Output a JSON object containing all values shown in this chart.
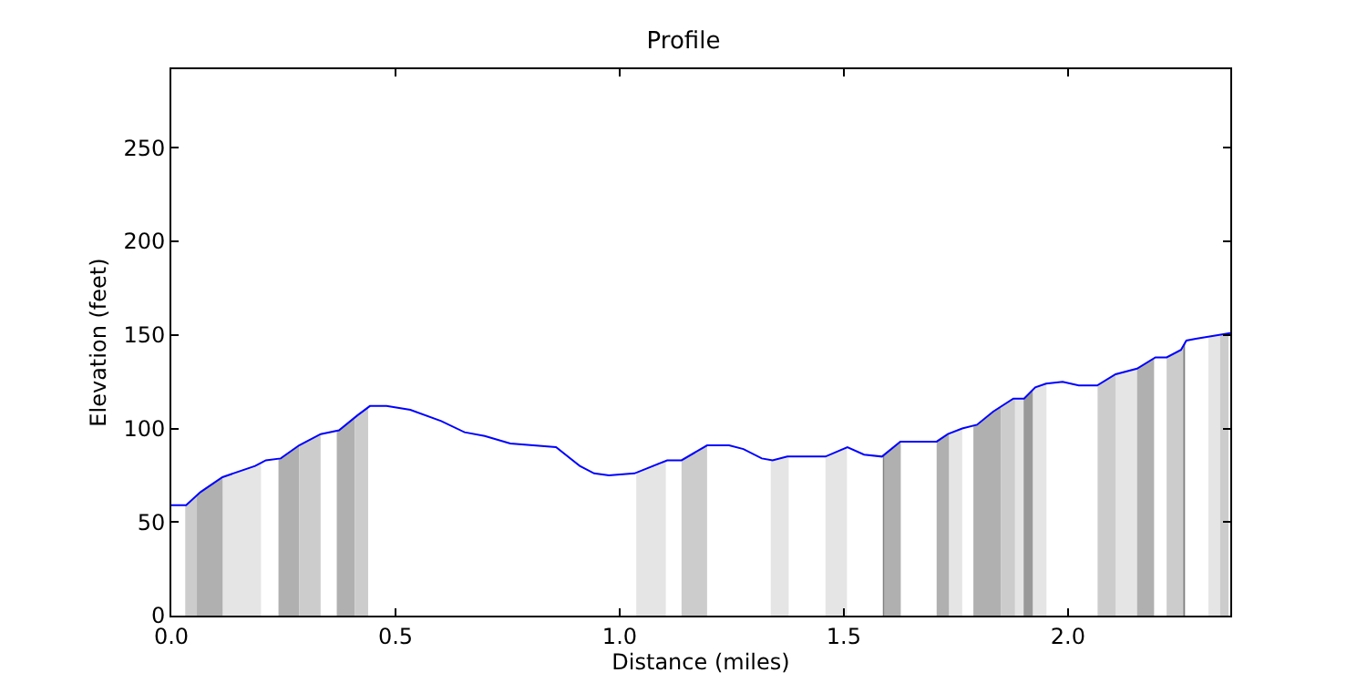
{
  "chart_data": {
    "type": "line",
    "title": "Profile",
    "xlabel": "Distance (miles)",
    "ylabel": "Elevation (feet)",
    "xlim": [
      0,
      2.362
    ],
    "ylim": [
      0,
      292
    ],
    "xticks": [
      {
        "value": 0,
        "label": "0.0"
      },
      {
        "value": 0.5,
        "label": "0.5"
      },
      {
        "value": 1,
        "label": "1.0"
      },
      {
        "value": 1.5,
        "label": "1.5"
      },
      {
        "value": 2,
        "label": "2.0"
      }
    ],
    "yticks": [
      0,
      50,
      100,
      150,
      200,
      250
    ],
    "grid": false,
    "line_style": "solid",
    "x": [
      0,
      0.033,
      0.065,
      0.114,
      0.187,
      0.211,
      0.244,
      0.285,
      0.333,
      0.374,
      0.415,
      0.443,
      0.48,
      0.533,
      0.602,
      0.654,
      0.699,
      0.756,
      0.858,
      0.911,
      0.943,
      0.976,
      1.033,
      1.106,
      1.138,
      1.195,
      1.244,
      1.276,
      1.317,
      1.341,
      1.374,
      1.459,
      1.508,
      1.545,
      1.585,
      1.626,
      1.707,
      1.732,
      1.764,
      1.797,
      1.833,
      1.878,
      1.902,
      1.927,
      1.951,
      1.988,
      2.024,
      2.065,
      2.106,
      2.154,
      2.195,
      2.22,
      2.252,
      2.264,
      2.285,
      2.362
    ],
    "series": [
      {
        "color": "#0000ff",
        "values": [
          59,
          59,
          66,
          74,
          80,
          83,
          84,
          91,
          97,
          99,
          107,
          112,
          112,
          110,
          104,
          98,
          96,
          92,
          90,
          80,
          76,
          75,
          76,
          83,
          83,
          91,
          91,
          89,
          84,
          83,
          85,
          85,
          90,
          86,
          85,
          93,
          93,
          97,
          100,
          102,
          109,
          116,
          116,
          122,
          124,
          125,
          123,
          123,
          129,
          132,
          138,
          138,
          142,
          147,
          148,
          151
        ]
      }
    ],
    "bands": [
      {
        "axis": "x",
        "from": 0.031,
        "to": 0.057,
        "color": "#cccccc"
      },
      {
        "axis": "x",
        "from": 0.057,
        "to": 0.115,
        "color": "#b0b0b0"
      },
      {
        "axis": "x",
        "from": 0.115,
        "to": 0.2,
        "color": "#e5e5e5"
      },
      {
        "axis": "x",
        "from": 0.239,
        "to": 0.285,
        "color": "#b0b0b0"
      },
      {
        "axis": "x",
        "from": 0.285,
        "to": 0.333,
        "color": "#cccccc"
      },
      {
        "axis": "x",
        "from": 0.369,
        "to": 0.409,
        "color": "#b0b0b0"
      },
      {
        "axis": "x",
        "from": 0.409,
        "to": 0.439,
        "color": "#cccccc"
      },
      {
        "axis": "x",
        "from": 1.037,
        "to": 1.103,
        "color": "#e5e5e5"
      },
      {
        "axis": "x",
        "from": 1.138,
        "to": 1.195,
        "color": "#cccccc"
      },
      {
        "axis": "x",
        "from": 1.337,
        "to": 1.377,
        "color": "#e5e5e5"
      },
      {
        "axis": "x",
        "from": 1.459,
        "to": 1.507,
        "color": "#e5e5e5"
      },
      {
        "axis": "x",
        "from": 1.587,
        "to": 1.591,
        "color": "#808080"
      },
      {
        "axis": "x",
        "from": 1.591,
        "to": 1.627,
        "color": "#b0b0b0"
      },
      {
        "axis": "x",
        "from": 1.707,
        "to": 1.735,
        "color": "#b0b0b0"
      },
      {
        "axis": "x",
        "from": 1.735,
        "to": 1.764,
        "color": "#e5e5e5"
      },
      {
        "axis": "x",
        "from": 1.789,
        "to": 1.85,
        "color": "#b0b0b0"
      },
      {
        "axis": "x",
        "from": 1.85,
        "to": 1.882,
        "color": "#cccccc"
      },
      {
        "axis": "x",
        "from": 1.882,
        "to": 1.901,
        "color": "#e5e5e5"
      },
      {
        "axis": "x",
        "from": 1.901,
        "to": 1.922,
        "color": "#999999"
      },
      {
        "axis": "x",
        "from": 1.922,
        "to": 1.952,
        "color": "#e5e5e5"
      },
      {
        "axis": "x",
        "from": 2.066,
        "to": 2.107,
        "color": "#cccccc"
      },
      {
        "axis": "x",
        "from": 2.107,
        "to": 2.154,
        "color": "#e5e5e5"
      },
      {
        "axis": "x",
        "from": 2.154,
        "to": 2.192,
        "color": "#b0b0b0"
      },
      {
        "axis": "x",
        "from": 2.22,
        "to": 2.257,
        "color": "#cccccc"
      },
      {
        "axis": "x",
        "from": 2.257,
        "to": 2.261,
        "color": "#808080"
      },
      {
        "axis": "x",
        "from": 2.313,
        "to": 2.339,
        "color": "#e5e5e5"
      },
      {
        "axis": "x",
        "from": 2.339,
        "to": 2.358,
        "color": "#cccccc"
      }
    ]
  }
}
